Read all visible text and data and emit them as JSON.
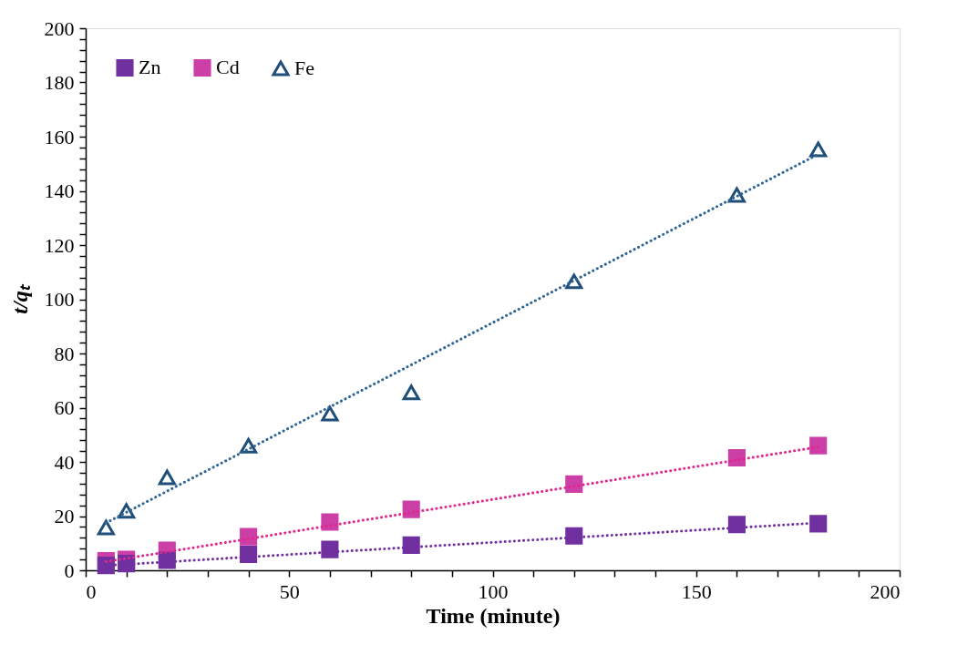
{
  "chart_data": {
    "type": "scatter",
    "xlabel": "Time (minute)",
    "ylabel": "t/qₜ",
    "x": [
      5,
      10,
      20,
      40,
      60,
      80,
      120,
      160,
      180
    ],
    "series": [
      {
        "name": "Zn",
        "color": "#7030a0",
        "marker": "square",
        "values": [
          1.8,
          2.5,
          3.7,
          5.9,
          7.7,
          9.3,
          12.7,
          16.9,
          17.2
        ]
      },
      {
        "name": "Cd",
        "color": "#cc3fa6",
        "marker": "square",
        "values": [
          3.5,
          4,
          7.4,
          12.4,
          17.8,
          22.5,
          31.8,
          41.5,
          46
        ]
      },
      {
        "name": "Fe",
        "color": "#1f4e79",
        "marker": "triangle",
        "values": [
          15.8,
          21.9,
          34.3,
          46,
          57.8,
          65.6,
          106.6,
          138.5,
          155.3
        ]
      },
      {
        "type": "line",
        "line_style": "dotted",
        "color": "#7030a0",
        "values": [
          1.8,
          2.2,
          3.1,
          4.9,
          6.7,
          8.5,
          12.1,
          15.7,
          17.5
        ]
      },
      {
        "type": "line",
        "line_style": "dotted",
        "color": "#e0288c",
        "values": [
          3.2,
          4.4,
          6.8,
          11.6,
          16.5,
          21.3,
          31,
          40.7,
          45.5
        ]
      },
      {
        "type": "line",
        "line_style": "dotted",
        "color": "#2e6496",
        "values": [
          17.5,
          21.4,
          29.2,
          44.7,
          60.3,
          75.8,
          106.9,
          138,
          153.5
        ]
      }
    ],
    "xlim": [
      0,
      200
    ],
    "xticks": [
      0,
      {
        "value": 10,
        "label": null
      },
      {
        "value": 20,
        "label": null
      },
      {
        "value": 30,
        "label": null
      },
      {
        "value": 40,
        "label": null
      },
      50,
      {
        "value": 60,
        "label": null
      },
      {
        "value": 70,
        "label": null
      },
      {
        "value": 80,
        "label": null
      },
      {
        "value": 90,
        "label": null
      },
      100,
      {
        "value": 110,
        "label": null
      },
      {
        "value": 120,
        "label": null
      },
      {
        "value": 130,
        "label": null
      },
      {
        "value": 140,
        "label": null
      },
      150,
      {
        "value": 160,
        "label": null
      },
      {
        "value": 170,
        "label": null
      },
      {
        "value": 180,
        "label": null
      },
      {
        "value": 190,
        "label": null
      },
      200
    ],
    "ylim": [
      0,
      200
    ],
    "yticks": [
      0,
      {
        "value": 4,
        "label": null
      },
      {
        "value": 8,
        "label": null
      },
      {
        "value": 12,
        "label": null
      },
      {
        "value": 16,
        "label": null
      },
      20,
      {
        "value": 24,
        "label": null
      },
      {
        "value": 28,
        "label": null
      },
      {
        "value": 32,
        "label": null
      },
      {
        "value": 36,
        "label": null
      },
      40,
      {
        "value": 44,
        "label": null
      },
      {
        "value": 48,
        "label": null
      },
      {
        "value": 52,
        "label": null
      },
      {
        "value": 56,
        "label": null
      },
      60,
      {
        "value": 64,
        "label": null
      },
      {
        "value": 68,
        "label": null
      },
      {
        "value": 72,
        "label": null
      },
      {
        "value": 76,
        "label": null
      },
      80,
      {
        "value": 84,
        "label": null
      },
      {
        "value": 88,
        "label": null
      },
      {
        "value": 92,
        "label": null
      },
      {
        "value": 96,
        "label": null
      },
      100,
      {
        "value": 104,
        "label": null
      },
      {
        "value": 108,
        "label": null
      },
      {
        "value": 112,
        "label": null
      },
      {
        "value": 116,
        "label": null
      },
      120,
      {
        "value": 124,
        "label": null
      },
      {
        "value": 128,
        "label": null
      },
      {
        "value": 132,
        "label": null
      },
      {
        "value": 136,
        "label": null
      },
      140,
      {
        "value": 144,
        "label": null
      },
      {
        "value": 148,
        "label": null
      },
      {
        "value": 152,
        "label": null
      },
      {
        "value": 156,
        "label": null
      },
      160,
      {
        "value": 164,
        "label": null
      },
      {
        "value": 168,
        "label": null
      },
      {
        "value": 172,
        "label": null
      },
      {
        "value": 176,
        "label": null
      },
      180,
      {
        "value": 184,
        "label": null
      },
      {
        "value": 188,
        "label": null
      },
      {
        "value": 192,
        "label": null
      },
      {
        "value": 196,
        "label": null
      },
      200
    ],
    "grid": false,
    "legend": "top left"
  }
}
